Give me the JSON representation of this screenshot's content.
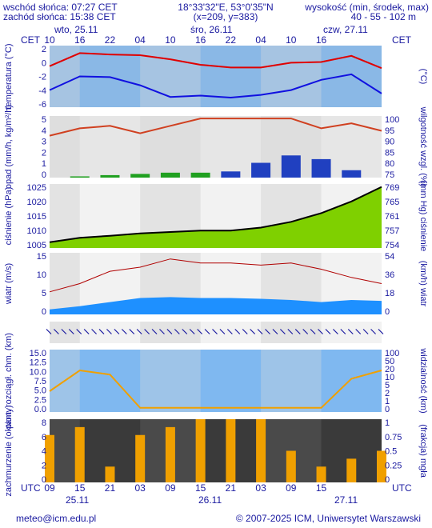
{
  "header": {
    "sunrise": "wschód słońca: 07:27 CET",
    "sunset": "zachód słońca: 15:38 CET",
    "coords": "18°33'32\"E, 53°0'35\"N",
    "grid": "(x=209, y=383)",
    "alt_label": "wysokość (min, środek, max)",
    "alt_values": "40 - 55 - 102 m"
  },
  "tz_left": "CET",
  "tz_right": "CET",
  "tz_bottom_left": "UTC",
  "tz_bottom_right": "UTC",
  "days_top": [
    "wto, 25.11",
    "śro, 26.11",
    "czw, 27.11"
  ],
  "hours_top": [
    "10",
    "16",
    "22",
    "04",
    "10",
    "16",
    "22",
    "04",
    "10",
    "16"
  ],
  "hours_bottom": [
    "09",
    "15",
    "21",
    "03",
    "09",
    "15",
    "21",
    "03",
    "09",
    "15"
  ],
  "days_bottom": [
    "25.11",
    "26.11",
    "27.11"
  ],
  "footer": {
    "email": "meteo@icm.edu.pl",
    "copyright": "© 2007-2025 ICM, Uniwersytet Warszawski"
  },
  "colors": {
    "text": "#1a1aa0",
    "night": "#d9d9d9",
    "temp": "#e00000",
    "dew": "#1010e0",
    "rain": "#2040c0",
    "snow": "#20a020",
    "pressure_line": "#000000",
    "wind_fill": "#1e90ff",
    "gust": "#b00000",
    "cloud_bar": "#f0a000",
    "humidity": "#d04020"
  },
  "chart_data": [
    {
      "type": "line",
      "name": "temperatura",
      "ylabel": "temperatura (°C)",
      "ylabel_right": "(°C)",
      "ylim": [
        -6,
        3
      ],
      "yticks": [
        "2",
        "0",
        "-2",
        "-4",
        "-6"
      ],
      "x_hours": [
        0,
        6,
        12,
        18,
        24,
        30,
        36,
        42,
        48,
        54,
        60,
        66
      ],
      "series": [
        {
          "name": "temperatura",
          "values": [
            0.0,
            1.9,
            1.7,
            1.6,
            1.0,
            0.2,
            -0.2,
            -0.2,
            0.5,
            0.6,
            1.5,
            -0.3
          ]
        },
        {
          "name": "punkt rosy",
          "values": [
            -3.5,
            -1.5,
            -1.6,
            -2.8,
            -4.5,
            -4.3,
            -4.6,
            -4.2,
            -3.5,
            -2.0,
            -1.2,
            -4.0
          ]
        }
      ]
    },
    {
      "type": "bar",
      "name": "opad",
      "ylabel": "opad (mm/h, kg/m²/h)",
      "ylabel_right": "wilgotność wzgl. (%)",
      "ylim": [
        0,
        5
      ],
      "ylim_right": [
        75,
        100
      ],
      "yticks": [
        "5",
        "4",
        "3",
        "2",
        "1",
        "0"
      ],
      "yticks_right": [
        "100",
        "95",
        "90",
        "85",
        "80",
        "75"
      ],
      "series": [
        {
          "name": "opad",
          "values": [
            0.0,
            0.1,
            0.2,
            0.3,
            0.4,
            0.4,
            0.5,
            1.2,
            1.8,
            1.5,
            0.6,
            0.0
          ]
        },
        {
          "name": "wilgotność",
          "values": [
            92,
            95,
            96,
            93,
            96,
            99,
            99,
            99,
            99,
            95,
            97,
            94
          ]
        }
      ]
    },
    {
      "type": "area",
      "name": "ciśnienie",
      "ylabel": "ciśnienie (hPa)",
      "ylabel_right": "(mm Hg) ciśnienie",
      "ylim": [
        1003,
        1025
      ],
      "yticks": [
        "1025",
        "1020",
        "1015",
        "1010",
        "1005"
      ],
      "yticks_right": [
        "769",
        "765",
        "761",
        "757",
        "754"
      ],
      "values": [
        1005.0,
        1006.5,
        1007.2,
        1008.0,
        1008.5,
        1009.0,
        1009.0,
        1010.0,
        1012.0,
        1015.0,
        1019.0,
        1024.0
      ]
    },
    {
      "type": "area",
      "name": "wiatr",
      "ylabel": "wiatr (m/s)",
      "ylabel_right": "(km/h) wiatr",
      "ylim": [
        0,
        15
      ],
      "yticks": [
        "15",
        "10",
        "5",
        "0"
      ],
      "yticks_right": [
        "54",
        "36",
        "18",
        "0"
      ],
      "series": [
        {
          "name": "prędkość",
          "values": [
            1.2,
            2.0,
            3.0,
            4.0,
            4.2,
            4.0,
            4.0,
            3.8,
            3.5,
            3.0,
            3.5,
            3.3
          ]
        },
        {
          "name": "porywy",
          "values": [
            5.5,
            7.5,
            10.5,
            11.5,
            13.5,
            12.5,
            12.5,
            12.0,
            12.5,
            11.0,
            9.0,
            7.5
          ]
        }
      ]
    },
    {
      "type": "scatter",
      "name": "widzialność",
      "ylabel": "pion. rozciągł. chm. (km)",
      "ylabel_right": "widzialność (km)",
      "ylim": [
        0,
        15
      ],
      "ylim_right": [
        0,
        100
      ],
      "yticks": [
        "15.0",
        "12.5",
        "10.0",
        "7.5",
        "5.0",
        "2.5",
        "0.0"
      ],
      "yticks_right": [
        "100",
        "50",
        "20",
        "10",
        "5",
        "2",
        "1",
        "0"
      ],
      "series": [
        {
          "name": "widzialność",
          "values": [
            5,
            10,
            9,
            1,
            1,
            1,
            1,
            1,
            1,
            1,
            8,
            10
          ]
        }
      ]
    },
    {
      "type": "bar",
      "name": "zachmurzenie",
      "ylabel": "zachmurzenie (oktanty)",
      "ylabel_right": "(frakcja) mgła",
      "ylim": [
        0,
        8
      ],
      "ylim_right": [
        0,
        1
      ],
      "yticks": [
        "8",
        "6",
        "4",
        "2",
        "0"
      ],
      "yticks_right": [
        "1",
        "0.75",
        "0.5",
        "0.25",
        "0"
      ],
      "values": [
        6,
        7,
        2,
        6,
        7,
        8,
        8,
        8,
        4,
        2,
        3,
        4
      ]
    }
  ]
}
